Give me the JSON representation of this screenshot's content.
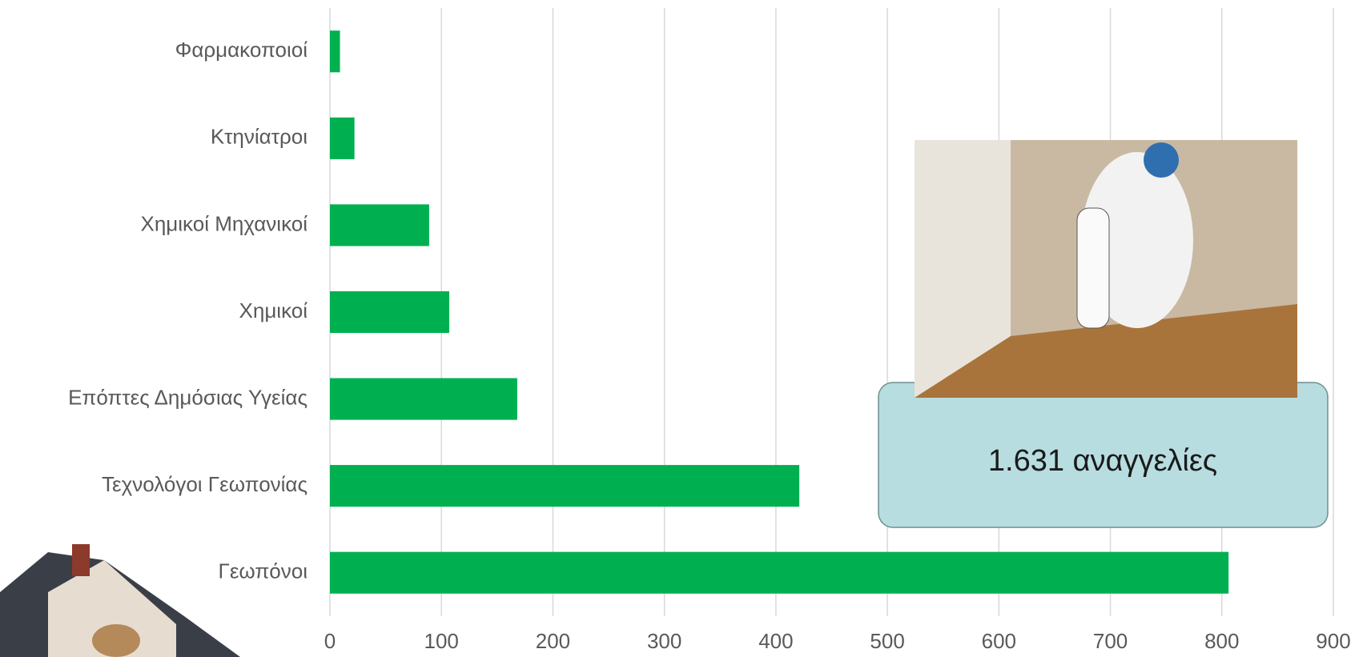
{
  "chart_data": {
    "type": "bar",
    "orientation": "horizontal",
    "categories": [
      "Φαρμακοποιοί",
      "Κτηνίατροι",
      "Χημικοί Μηχανικοί",
      "Χημικοί",
      "Επόπτες Δημόσιας Υγείας",
      "Τεχνολόγοι Γεωπονίας",
      "Γεωπόνοι"
    ],
    "values": [
      9,
      22,
      89,
      107,
      168,
      421,
      806
    ],
    "color": "#00b050",
    "xlim": [
      0,
      900
    ],
    "xticks": [
      0,
      100,
      200,
      300,
      400,
      500,
      600,
      700,
      800,
      900
    ],
    "grid": true,
    "annotation": "1.631 αναγγελίες"
  }
}
